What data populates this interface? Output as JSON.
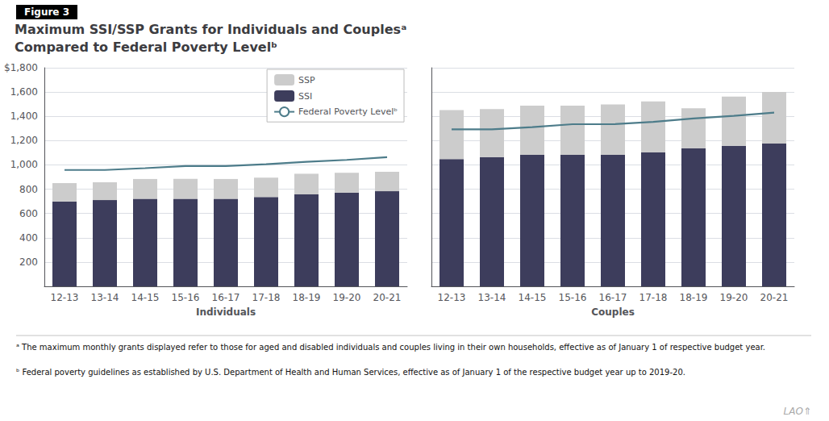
{
  "title": "Maximum SSI/SSP Grants for Individuals and Couplesᵃ",
  "subtitle": "Compared to Federal Poverty Levelᵇ",
  "annotations": [
    "Figure 3",
    "ᵃ The maximum monthly grants displayed refer to those for aged and disabled individuals and couples living in their own households, effective as of January 1 of respective budget year.",
    "ᵇ Federal poverty guidelines as established by U.S. Department of Health and Human Services, effective as of January 1 of the respective budget year up to 2019-20.",
    "LAO⇑"
  ],
  "chart_data": [
    {
      "type": "bar",
      "stacked": true,
      "xlabel": "Individuals",
      "categories": [
        "12-13",
        "13-14",
        "14-15",
        "15-16",
        "16-17",
        "17-18",
        "18-19",
        "19-20",
        "20-21"
      ],
      "series": [
        {
          "name": "SSI",
          "color": "#3d3d5c",
          "values": [
            698,
            710,
            721,
            721,
            721,
            735,
            757,
            771,
            783
          ]
        },
        {
          "name": "SSP",
          "color": "#cccccc",
          "values": [
            152,
            147,
            163,
            164,
            163,
            160,
            170,
            164,
            160
          ]
        },
        {
          "name": "Federal Poverty Levelᵇ",
          "type": "line",
          "color": "#4d7c8a",
          "values": [
            958,
            958,
            973,
            990,
            990,
            1005,
            1025,
            1041,
            1063
          ]
        }
      ],
      "ylim": [
        0,
        1800
      ],
      "yticks": [
        200,
        400,
        600,
        800,
        {
          "value": 1000,
          "label": "1,000"
        },
        {
          "value": 1200,
          "label": "1,200"
        },
        {
          "value": 1400,
          "label": "1,400"
        },
        {
          "value": 1600,
          "label": "1,600"
        },
        {
          "value": 1800,
          "label": "$1,800"
        }
      ],
      "grid": true,
      "legend": "upper right"
    },
    {
      "type": "bar",
      "stacked": true,
      "xlabel": "Couples",
      "categories": [
        "12-13",
        "13-14",
        "14-15",
        "15-16",
        "16-17",
        "17-18",
        "18-19",
        "19-20",
        "20-21"
      ],
      "series": [
        {
          "name": "SSI",
          "color": "#3d3d5c",
          "values": [
            1047,
            1065,
            1082,
            1082,
            1082,
            1103,
            1136,
            1157,
            1175
          ]
        },
        {
          "name": "SSP",
          "color": "#cccccc",
          "values": [
            405,
            395,
            405,
            405,
            415,
            420,
            330,
            405,
            425
          ]
        },
        {
          "name": "Federal Poverty Levelᵇ",
          "type": "line",
          "color": "#4d7c8a",
          "values": [
            1293,
            1293,
            1311,
            1335,
            1335,
            1354,
            1382,
            1404,
            1430
          ]
        }
      ],
      "ylim": [
        0,
        1800
      ],
      "yticks": [
        200,
        400,
        600,
        800,
        {
          "value": 1000,
          "label": "1,000"
        },
        {
          "value": 1200,
          "label": "1,200"
        },
        {
          "value": 1400,
          "label": "1,400"
        },
        {
          "value": 1600,
          "label": "1,600"
        },
        {
          "value": 1800,
          "label": "$1,800"
        }
      ],
      "grid": true,
      "tick_labels": "x"
    }
  ]
}
